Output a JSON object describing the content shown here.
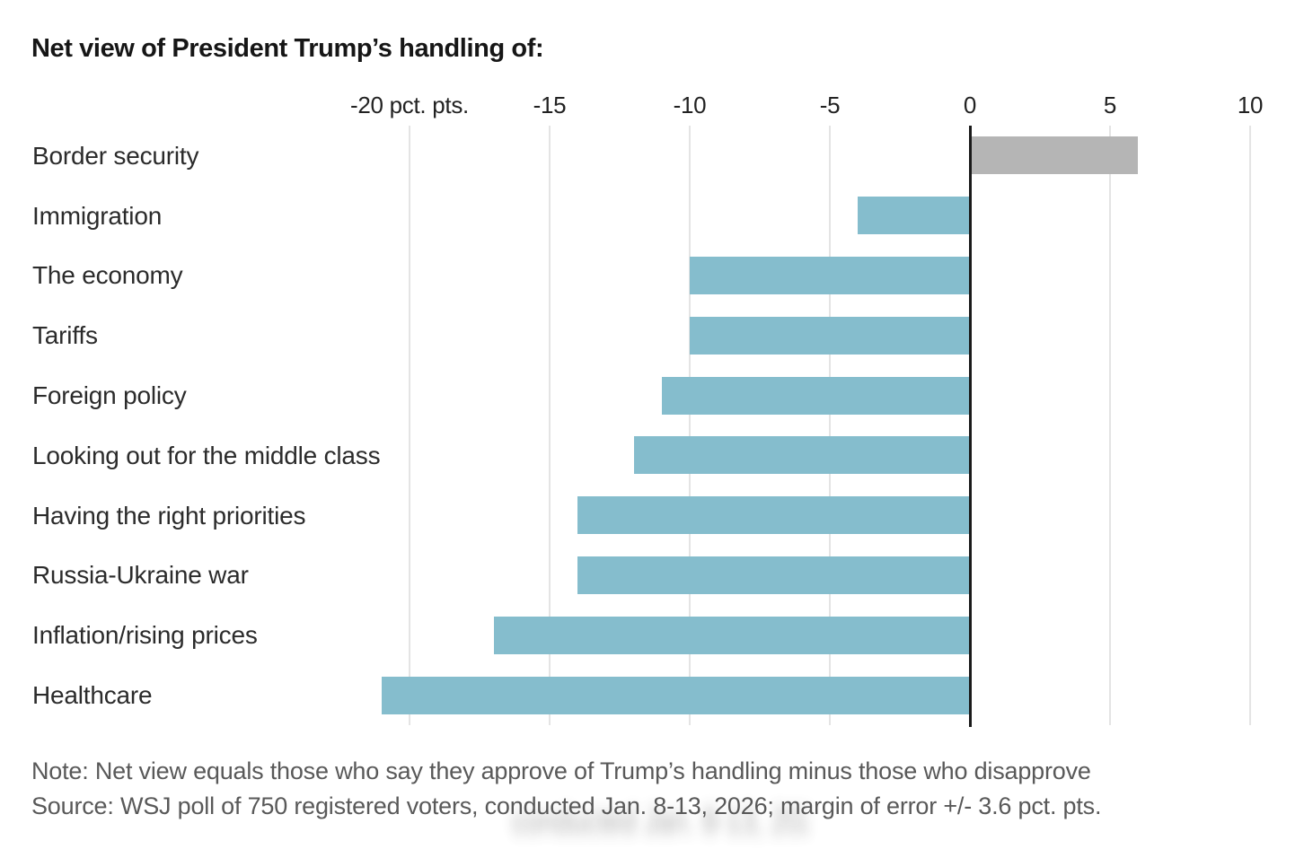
{
  "title": "Net view of President Trump’s handling of:",
  "chart_data": {
    "type": "bar",
    "orientation": "horizontal",
    "title": "Net view of President Trump’s handling of:",
    "categories": [
      "Border security",
      "Immigration",
      "The economy",
      "Tariffs",
      "Foreign policy",
      "Looking out for the middle class",
      "Having the right priorities",
      "Russia-Ukraine war",
      "Inflation/rising prices",
      "Healthcare"
    ],
    "values": [
      6,
      -4,
      -10,
      -10,
      -11,
      -12,
      -14,
      -14,
      -17,
      -21
    ],
    "unit": "pct. pts.",
    "x_ticks": [
      -20,
      -15,
      -10,
      -5,
      0,
      5,
      10
    ],
    "x_tick_labels": [
      "-20 pct. pts.",
      "-15",
      "-10",
      "-5",
      "0",
      "5",
      "10"
    ],
    "xlim": [
      -21.5,
      11
    ],
    "grid": true,
    "legend": "none",
    "positive_color": "#b5b5b5",
    "negative_color": "#85bdcd",
    "axis_color": "#1a1a1a",
    "gridline_color": "#e4e4e4"
  },
  "footer": {
    "note": "Note: Net view equals those who say they approve of Trump’s handling minus those who disapprove",
    "source": "Source: WSJ poll of 750 registered voters, conducted Jan. 8-13, 2026; margin of error +/- 3.6 pct. pts."
  },
  "artifact": {
    "text": "conducted Jan. 8-13, 2026;"
  }
}
